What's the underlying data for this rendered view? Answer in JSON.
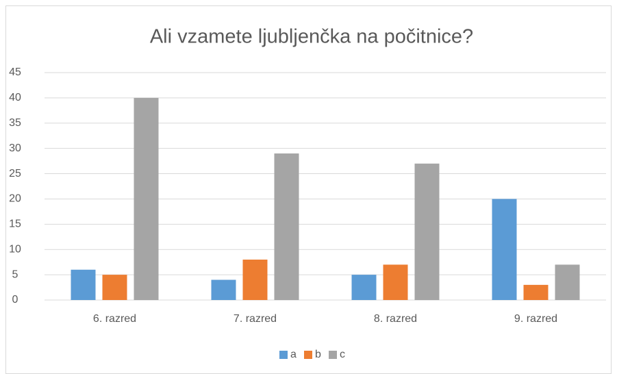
{
  "chart_data": {
    "type": "bar",
    "title": "Ali vzamete ljubljenčka na počitnice?",
    "categories": [
      "6. razred",
      "7. razred",
      "8. razred",
      "9. razred"
    ],
    "series": [
      {
        "name": "a",
        "color": "#5b9bd5",
        "values": [
          6,
          4,
          5,
          20
        ]
      },
      {
        "name": "b",
        "color": "#ed7d31",
        "values": [
          5,
          8,
          7,
          3
        ]
      },
      {
        "name": "c",
        "color": "#a5a5a5",
        "values": [
          40,
          29,
          27,
          7
        ]
      }
    ],
    "ylim": [
      0,
      45
    ],
    "yticks": [
      0,
      5,
      10,
      15,
      20,
      25,
      30,
      35,
      40,
      45
    ],
    "grid": true,
    "legend": "bottom"
  }
}
